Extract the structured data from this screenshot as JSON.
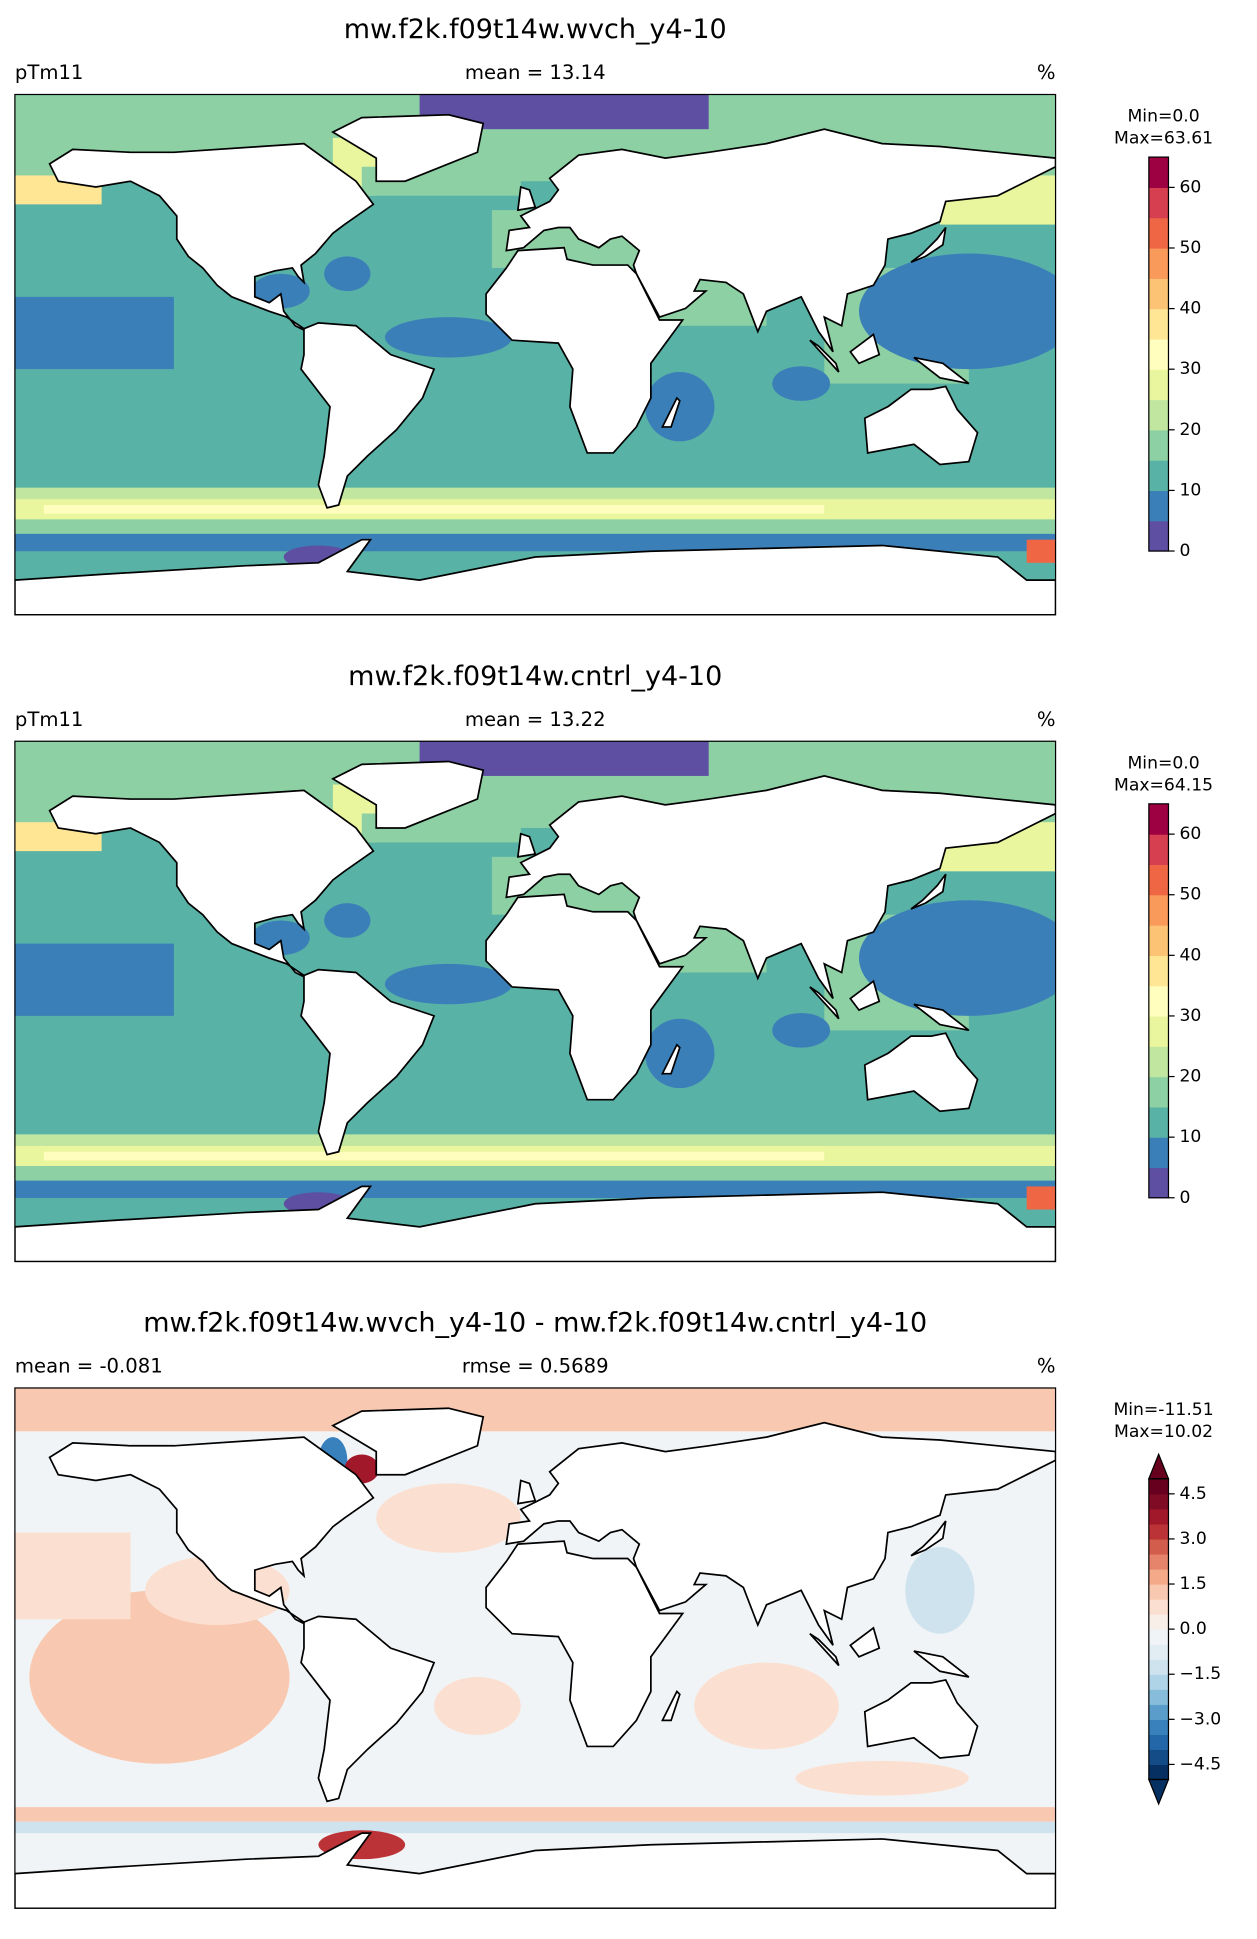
{
  "panels": [
    {
      "title": "mw.f2k.f09t14w.wvch_y4-10",
      "left_label": "pTm11",
      "center_label": "mean = 13.14",
      "units": "%",
      "colorbar": {
        "min_label": "Min=0.0",
        "max_label": "Max=63.61",
        "lim": [
          0,
          65
        ],
        "ticks": [
          0,
          10,
          20,
          30,
          40,
          50,
          60
        ],
        "colors": [
          "#5e4fa2",
          "#3b7fb9",
          "#59b2a6",
          "#8cd0a4",
          "#c1e6a0",
          "#eaf69e",
          "#fffebe",
          "#fee695",
          "#fdc374",
          "#fa9a5a",
          "#ef6645",
          "#d63f4f",
          "#9e0142"
        ]
      }
    },
    {
      "title": "mw.f2k.f09t14w.cntrl_y4-10",
      "left_label": "pTm11",
      "center_label": "mean = 13.22",
      "units": "%",
      "colorbar": {
        "min_label": "Min=0.0",
        "max_label": "Max=64.15",
        "lim": [
          0,
          65
        ],
        "ticks": [
          0,
          10,
          20,
          30,
          40,
          50,
          60
        ],
        "colors": [
          "#5e4fa2",
          "#3b7fb9",
          "#59b2a6",
          "#8cd0a4",
          "#c1e6a0",
          "#eaf69e",
          "#fffebe",
          "#fee695",
          "#fdc374",
          "#fa9a5a",
          "#ef6645",
          "#d63f4f",
          "#9e0142"
        ]
      }
    },
    {
      "title": "mw.f2k.f09t14w.wvch_y4-10 - mw.f2k.f09t14w.cntrl_y4-10",
      "left_label": "mean = -0.081",
      "center_label": "rmse = 0.5689",
      "units": "%",
      "colorbar": {
        "min_label": "Min=-11.51",
        "max_label": "Max=10.02",
        "lim": [
          -5,
          5
        ],
        "extend": "both",
        "ticks": [
          {
            "value": -4.5,
            "label": "−4.5"
          },
          {
            "value": -3,
            "label": "−3.0"
          },
          {
            "value": -1.5,
            "label": "−1.5"
          },
          {
            "value": 0,
            "label": "0.0"
          },
          1.5,
          {
            "value": 3,
            "label": "3.0"
          },
          4.5
        ],
        "colors": [
          "#053061",
          "#134c87",
          "#2467a9",
          "#3881bd",
          "#5a9dcb",
          "#87bddb",
          "#afd3e7",
          "#cfe3ef",
          "#e2edf3",
          "#f1f4f6",
          "#f8efe9",
          "#fbe0d1",
          "#f9c8b0",
          "#f4a989",
          "#e5846a",
          "#d25d4d",
          "#bc3337",
          "#a2182b",
          "#800b25",
          "#67001f"
        ]
      }
    }
  ]
}
